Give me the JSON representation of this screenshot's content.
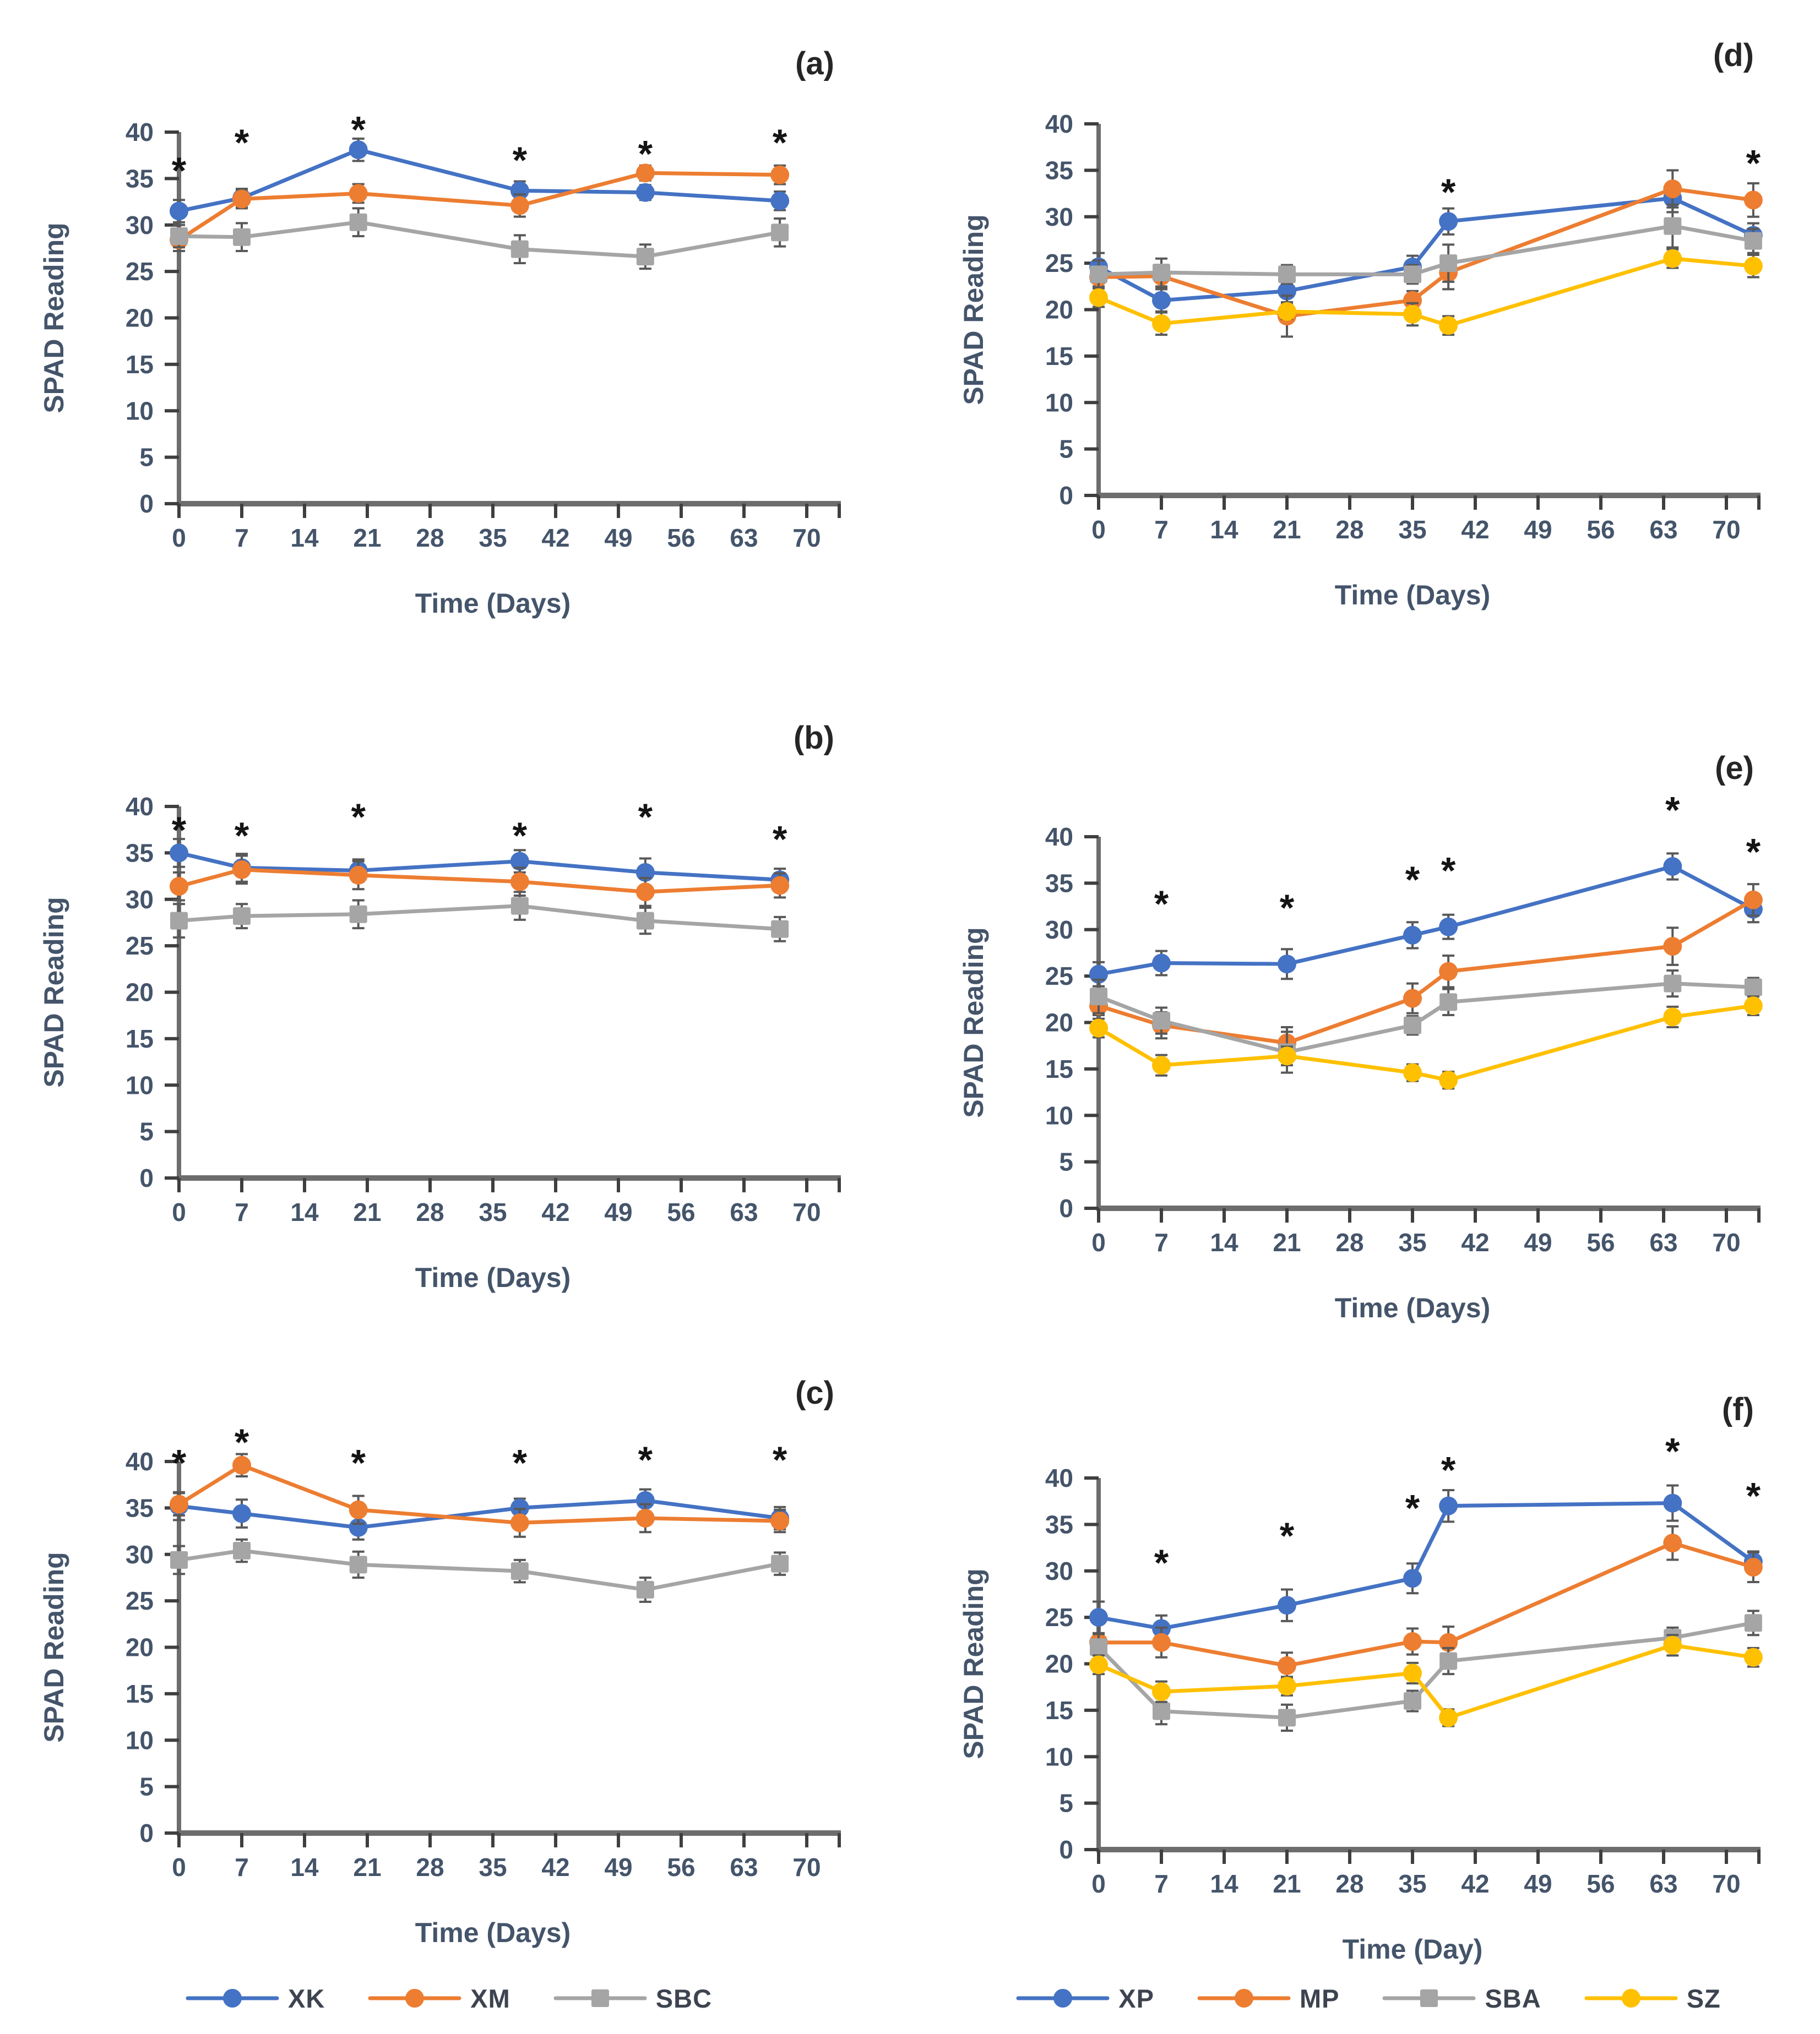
{
  "figure": {
    "description_texts": {
      "y_axis_title": "SPAD Reading",
      "x_axis_title_days": "Time (Days)",
      "x_axis_title_day": "Time (Day)",
      "significance_marker": "*"
    },
    "colors": {
      "blue": "#4472C4",
      "orange": "#ED7D31",
      "gray": "#A5A5A5",
      "yellow": "#FFC000",
      "axis_text": "#44546A",
      "axis_line": "#6d6d6d",
      "tick_mark": "#3f3f3f",
      "error_bar": "#595959",
      "asterisk": "#141414",
      "panel_label": "#262626",
      "legend_text": "#3d4450"
    },
    "legends": {
      "left": {
        "items": [
          {
            "label": "XK",
            "color_key": "blue",
            "marker": "circle"
          },
          {
            "label": "XM",
            "color_key": "orange",
            "marker": "circle"
          },
          {
            "label": "SBC",
            "color_key": "gray",
            "marker": "square"
          }
        ]
      },
      "right": {
        "items": [
          {
            "label": "XP",
            "color_key": "blue",
            "marker": "circle"
          },
          {
            "label": "MP",
            "color_key": "orange",
            "marker": "circle"
          },
          {
            "label": "SBA",
            "color_key": "gray",
            "marker": "square"
          },
          {
            "label": "SZ",
            "color_key": "yellow",
            "marker": "circle"
          }
        ]
      }
    }
  },
  "chart_data": [
    {
      "id": "a",
      "panel_label": "(a)",
      "type": "line",
      "xlabel": "Time (Days)",
      "ylabel": "SPAD Reading",
      "ylim": [
        0,
        40
      ],
      "yticks": [
        0,
        5,
        10,
        15,
        20,
        25,
        30,
        35,
        40
      ],
      "xticks": [
        0,
        7,
        14,
        21,
        28,
        35,
        42,
        49,
        56,
        63,
        70
      ],
      "x": [
        0,
        7,
        20,
        38,
        52,
        67
      ],
      "series": [
        {
          "name": "XK",
          "color_key": "blue",
          "marker": "circle",
          "values": [
            31.5,
            32.9,
            38.1,
            33.7,
            33.5,
            32.6
          ],
          "errors": [
            1.2,
            1.0,
            1.2,
            1.0,
            0.8,
            1.0
          ]
        },
        {
          "name": "XM",
          "color_key": "orange",
          "marker": "circle",
          "values": [
            28.4,
            32.8,
            33.4,
            32.1,
            35.6,
            35.4
          ],
          "errors": [
            1.2,
            1.0,
            1.0,
            1.2,
            0.8,
            1.0
          ]
        },
        {
          "name": "SBC",
          "color_key": "gray",
          "marker": "square",
          "values": [
            28.8,
            28.7,
            30.3,
            27.4,
            26.6,
            29.2
          ],
          "errors": [
            1.2,
            1.5,
            1.5,
            1.5,
            1.3,
            1.5
          ]
        }
      ],
      "asterisks": [
        {
          "x": 0,
          "y": 36.4
        },
        {
          "x": 7,
          "y": 39.4
        },
        {
          "x": 20,
          "y": 40.8
        },
        {
          "x": 38,
          "y": 37.5
        },
        {
          "x": 52,
          "y": 38.2
        },
        {
          "x": 67,
          "y": 39.4
        }
      ]
    },
    {
      "id": "b",
      "panel_label": "(b)",
      "type": "line",
      "xlabel": "Time (Days)",
      "ylabel": "SPAD Reading",
      "ylim": [
        0,
        40
      ],
      "yticks": [
        0,
        5,
        10,
        15,
        20,
        25,
        30,
        35,
        40
      ],
      "xticks": [
        0,
        7,
        14,
        21,
        28,
        35,
        42,
        49,
        56,
        63,
        70
      ],
      "x": [
        0,
        7,
        20,
        38,
        52,
        67
      ],
      "series": [
        {
          "name": "XK",
          "color_key": "blue",
          "marker": "circle",
          "values": [
            35.0,
            33.4,
            33.1,
            34.1,
            32.9,
            32.1
          ],
          "errors": [
            1.5,
            1.5,
            1.2,
            1.2,
            1.5,
            1.2
          ]
        },
        {
          "name": "XM",
          "color_key": "orange",
          "marker": "circle",
          "values": [
            31.4,
            33.2,
            32.6,
            31.9,
            30.8,
            31.5
          ],
          "errors": [
            1.5,
            1.5,
            1.5,
            1.5,
            1.5,
            1.3
          ]
        },
        {
          "name": "SBC",
          "color_key": "gray",
          "marker": "square",
          "values": [
            27.7,
            28.2,
            28.4,
            29.3,
            27.7,
            26.8
          ],
          "errors": [
            1.8,
            1.3,
            1.5,
            1.5,
            1.4,
            1.3
          ]
        }
      ],
      "asterisks": [
        {
          "x": 0,
          "y": 38.0
        },
        {
          "x": 7,
          "y": 37.4
        },
        {
          "x": 20,
          "y": 39.4
        },
        {
          "x": 38,
          "y": 37.4
        },
        {
          "x": 52,
          "y": 39.4
        },
        {
          "x": 67,
          "y": 37.0
        }
      ]
    },
    {
      "id": "c",
      "panel_label": "(c)",
      "type": "line",
      "xlabel": "Time (Days)",
      "ylabel": "SPAD Reading",
      "ylim": [
        0,
        40
      ],
      "yticks": [
        0,
        5,
        10,
        15,
        20,
        25,
        30,
        35,
        40
      ],
      "xticks": [
        0,
        7,
        14,
        21,
        28,
        35,
        42,
        49,
        56,
        63,
        70
      ],
      "x": [
        0,
        7,
        20,
        38,
        52,
        67
      ],
      "series": [
        {
          "name": "XK",
          "color_key": "blue",
          "marker": "circle",
          "values": [
            35.2,
            34.4,
            32.9,
            35.0,
            35.8,
            33.9
          ],
          "errors": [
            1.5,
            1.5,
            1.3,
            1.0,
            1.2,
            1.2
          ]
        },
        {
          "name": "XM",
          "color_key": "orange",
          "marker": "circle",
          "values": [
            35.4,
            39.6,
            34.8,
            33.4,
            33.9,
            33.6
          ],
          "errors": [
            1.2,
            1.2,
            1.5,
            1.5,
            1.5,
            1.2
          ]
        },
        {
          "name": "SBC",
          "color_key": "gray",
          "marker": "square",
          "values": [
            29.4,
            30.4,
            28.9,
            28.2,
            26.2,
            29.0
          ],
          "errors": [
            1.5,
            1.2,
            1.4,
            1.2,
            1.3,
            1.2
          ]
        }
      ],
      "asterisks": [
        {
          "x": 0,
          "y": 40.4
        },
        {
          "x": 7,
          "y": 42.6
        },
        {
          "x": 20,
          "y": 40.4
        },
        {
          "x": 38,
          "y": 40.4
        },
        {
          "x": 52,
          "y": 40.7
        },
        {
          "x": 67,
          "y": 40.7
        }
      ]
    },
    {
      "id": "d",
      "panel_label": "(d)",
      "type": "line",
      "xlabel": "Time (Days)",
      "ylabel": "SPAD Reading",
      "ylim": [
        0,
        40
      ],
      "yticks": [
        0,
        5,
        10,
        15,
        20,
        25,
        30,
        35,
        40
      ],
      "xticks": [
        0,
        7,
        14,
        21,
        28,
        35,
        42,
        49,
        56,
        63,
        70
      ],
      "x": [
        0,
        7,
        21,
        35,
        39,
        64,
        73
      ],
      "series": [
        {
          "name": "XP",
          "color_key": "blue",
          "marker": "circle",
          "values": [
            24.6,
            21.0,
            22.0,
            24.6,
            29.5,
            32.0,
            28.0
          ],
          "errors": [
            1.5,
            1.2,
            1.2,
            1.2,
            1.4,
            1.5,
            1.3
          ]
        },
        {
          "name": "MP",
          "color_key": "orange",
          "marker": "circle",
          "values": [
            23.5,
            23.6,
            19.3,
            21.0,
            24.0,
            33.0,
            31.8
          ],
          "errors": [
            1.0,
            1.2,
            2.2,
            1.0,
            1.8,
            2.0,
            1.8
          ]
        },
        {
          "name": "SBA",
          "color_key": "gray",
          "marker": "square",
          "values": [
            23.8,
            24.0,
            23.8,
            23.8,
            25.0,
            29.0,
            27.4
          ],
          "errors": [
            1.5,
            1.5,
            1.0,
            1.0,
            2.0,
            2.3,
            1.3
          ]
        },
        {
          "name": "SZ",
          "color_key": "yellow",
          "marker": "circle",
          "values": [
            21.3,
            18.5,
            19.8,
            19.5,
            18.3,
            25.5,
            24.7
          ],
          "errors": [
            1.0,
            1.2,
            0.8,
            1.2,
            1.0,
            1.0,
            1.2
          ]
        }
      ],
      "asterisks": [
        {
          "x": 39,
          "y": 33.2
        },
        {
          "x": 73,
          "y": 36.3
        }
      ]
    },
    {
      "id": "e",
      "panel_label": "(e)",
      "type": "line",
      "xlabel": "Time (Days)",
      "ylabel": "SPAD Reading",
      "ylim": [
        0,
        40
      ],
      "yticks": [
        0,
        5,
        10,
        15,
        20,
        25,
        30,
        35,
        40
      ],
      "xticks": [
        0,
        7,
        14,
        21,
        28,
        35,
        42,
        49,
        56,
        63,
        70
      ],
      "x": [
        0,
        7,
        21,
        35,
        39,
        64,
        73
      ],
      "series": [
        {
          "name": "XP",
          "color_key": "blue",
          "marker": "circle",
          "values": [
            25.2,
            26.4,
            26.3,
            29.4,
            30.3,
            36.8,
            32.2
          ],
          "errors": [
            1.3,
            1.3,
            1.6,
            1.4,
            1.3,
            1.4,
            1.4
          ]
        },
        {
          "name": "MP",
          "color_key": "orange",
          "marker": "circle",
          "values": [
            21.8,
            19.7,
            17.8,
            22.6,
            25.5,
            28.2,
            33.2
          ],
          "errors": [
            1.0,
            1.4,
            1.7,
            1.6,
            1.7,
            2.0,
            1.7
          ]
        },
        {
          "name": "SBA",
          "color_key": "gray",
          "marker": "square",
          "values": [
            22.8,
            20.2,
            16.8,
            19.7,
            22.2,
            24.2,
            23.8
          ],
          "errors": [
            1.8,
            1.4,
            2.2,
            1.0,
            1.4,
            1.4,
            1.0
          ]
        },
        {
          "name": "SZ",
          "color_key": "yellow",
          "marker": "circle",
          "values": [
            19.4,
            15.4,
            16.4,
            14.6,
            13.8,
            20.6,
            21.8
          ],
          "errors": [
            1.0,
            1.1,
            1.0,
            0.9,
            0.9,
            1.1,
            1.0
          ]
        }
      ],
      "asterisks": [
        {
          "x": 7,
          "y": 33.3
        },
        {
          "x": 21,
          "y": 32.9
        },
        {
          "x": 35,
          "y": 35.9
        },
        {
          "x": 39,
          "y": 36.9
        },
        {
          "x": 64,
          "y": 43.4
        },
        {
          "x": 73,
          "y": 38.9
        }
      ]
    },
    {
      "id": "f",
      "panel_label": "(f)",
      "type": "line",
      "xlabel": "Time (Day)",
      "ylabel": "SPAD Reading",
      "ylim": [
        0,
        40
      ],
      "yticks": [
        0,
        5,
        10,
        15,
        20,
        25,
        30,
        35,
        40
      ],
      "xticks": [
        0,
        7,
        14,
        21,
        28,
        35,
        42,
        49,
        56,
        63,
        70
      ],
      "x": [
        0,
        7,
        21,
        35,
        39,
        64,
        73
      ],
      "series": [
        {
          "name": "XP",
          "color_key": "blue",
          "marker": "circle",
          "values": [
            25.0,
            23.8,
            26.3,
            29.2,
            37.0,
            37.3,
            31.0
          ],
          "errors": [
            1.7,
            1.4,
            1.7,
            1.6,
            1.7,
            1.9,
            1.1
          ]
        },
        {
          "name": "MP",
          "color_key": "orange",
          "marker": "circle",
          "values": [
            22.3,
            22.3,
            19.8,
            22.4,
            22.3,
            33.0,
            30.4
          ],
          "errors": [
            1.0,
            1.6,
            1.4,
            1.4,
            1.7,
            1.8,
            1.6
          ]
        },
        {
          "name": "SBA",
          "color_key": "gray",
          "marker": "square",
          "values": [
            21.8,
            14.9,
            14.2,
            16.0,
            20.3,
            22.8,
            24.4
          ],
          "errors": [
            1.4,
            1.4,
            1.4,
            1.1,
            1.4,
            1.1,
            1.3
          ]
        },
        {
          "name": "SZ",
          "color_key": "yellow",
          "marker": "circle",
          "values": [
            19.9,
            17.0,
            17.6,
            19.0,
            14.2,
            22.0,
            20.7
          ],
          "errors": [
            1.0,
            1.1,
            1.0,
            1.1,
            0.9,
            1.1,
            1.0
          ]
        }
      ],
      "asterisks": [
        {
          "x": 7,
          "y": 31.4
        },
        {
          "x": 21,
          "y": 34.3
        },
        {
          "x": 35,
          "y": 37.3
        },
        {
          "x": 39,
          "y": 41.4
        },
        {
          "x": 64,
          "y": 43.4
        },
        {
          "x": 73,
          "y": 38.6
        }
      ]
    }
  ]
}
